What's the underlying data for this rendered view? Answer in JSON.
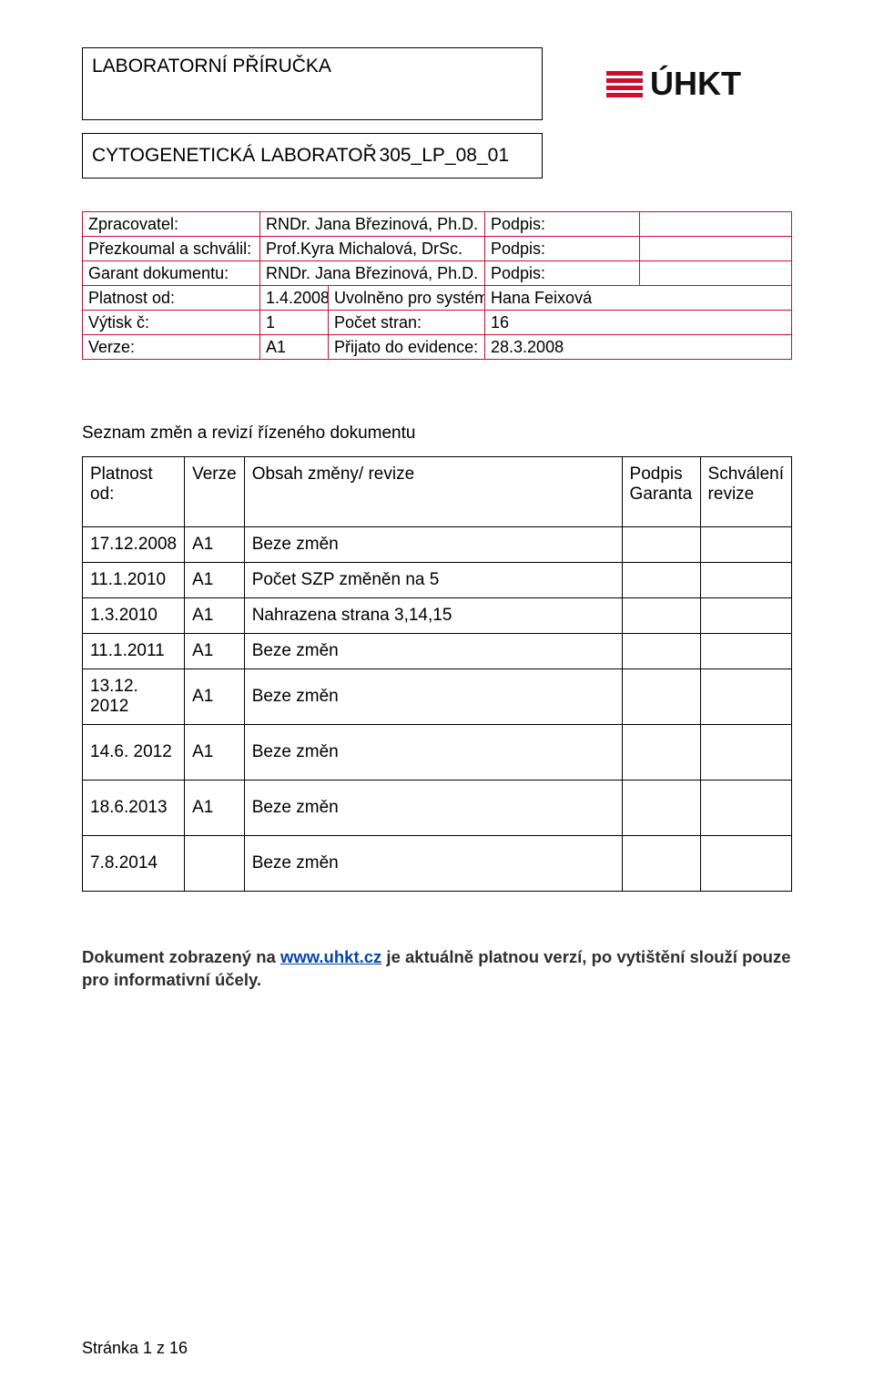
{
  "header": {
    "title": "LABORATORNÍ PŘÍRUČKA",
    "subtitle_left": "CYTOGENETICKÁ  LABORATOŘ",
    "subtitle_right": "305_LP_08_01",
    "logo_text": "ÚHKT",
    "logo_red": "#c8102e"
  },
  "meta": {
    "rows": [
      {
        "label": "Zpracovatel:",
        "mid": "RNDr. Jana Březinová, Ph.D.",
        "siglab": "Podpis:",
        "sigval": ""
      },
      {
        "label": "Přezkoumal a schválil:",
        "mid": "Prof.Kyra Michalová, DrSc.",
        "siglab": "Podpis:",
        "sigval": ""
      },
      {
        "label": "Garant dokumentu:",
        "mid": "RNDr. Jana Březinová, Ph.D.",
        "siglab": "Podpis:",
        "sigval": ""
      },
      {
        "label": "Platnost od:",
        "val1": "1.4.2008",
        "mid2": "Uvolněno pro systém:",
        "val2": "Hana Feixová"
      },
      {
        "label": "Výtisk č:",
        "val1": "1",
        "mid2": "Počet stran:",
        "val2": "16"
      },
      {
        "label": "Verze:",
        "val1": "A1",
        "mid2": "Přijato do evidence:",
        "val2": "28.3.2008"
      }
    ],
    "border_color": "#c8102e"
  },
  "section_title": "Seznam změn a revizí řízeného dokumentu",
  "rev": {
    "headers": {
      "c1a": "Platnost",
      "c1b": "od:",
      "c2": "Verze",
      "c3": "Obsah změny/ revize",
      "c4a": "Podpis",
      "c4b": "Garanta",
      "c5a": "Schválení",
      "c5b": "revize"
    },
    "rows": [
      {
        "date": "17.12.2008",
        "ver": "A1",
        "desc": "Beze změn"
      },
      {
        "date": "11.1.2010",
        "ver": "A1",
        "desc": "Počet SZP změněn na 5"
      },
      {
        "date": "1.3.2010",
        "ver": "A1",
        "desc": "Nahrazena strana 3,14,15"
      },
      {
        "date": "11.1.2011",
        "ver": "A1",
        "desc": "Beze změn"
      },
      {
        "date": "13.12. 2012",
        "ver": "A1",
        "desc": "Beze změn"
      },
      {
        "date": "14.6. 2012",
        "ver": "A1",
        "desc": "Beze změn"
      },
      {
        "date": "18.6.2013",
        "ver": "A1",
        "desc": "Beze změn"
      },
      {
        "date": "7.8.2014",
        "ver": "",
        "desc": "Beze změn"
      }
    ]
  },
  "notice": {
    "prefix": "Dokument zobrazený na ",
    "link_text": "www.uhkt.cz",
    "suffix": " je aktuálně platnou verzí, po vytištění slouží pouze pro informativní účely."
  },
  "footer": "Stránka 1 z 16"
}
